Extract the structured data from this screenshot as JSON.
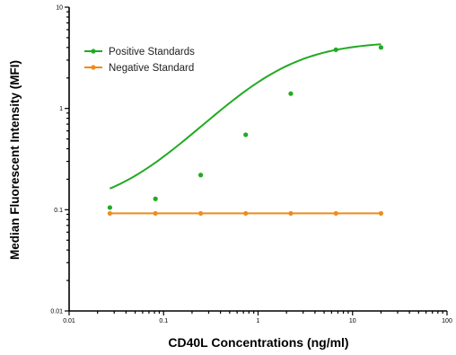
{
  "chart_data": {
    "type": "scatter",
    "xscale": "log",
    "yscale": "log",
    "xlim": [
      0.01,
      100
    ],
    "ylim": [
      0.01,
      10
    ],
    "xlabel": "CD40L Concentrations (ng/ml)",
    "ylabel": "Median Fluorescent Intensity (MFI)",
    "x_tick_labels": [
      "0.01",
      "0.1",
      "1",
      "10",
      "100"
    ],
    "y_tick_labels": [
      "0.01",
      "0.1",
      "1",
      "10"
    ],
    "grid": false,
    "legend_position": "top-left",
    "series": [
      {
        "name": "Positive Standards",
        "color": "#22aa22",
        "marker": "circle",
        "fit": "sigmoidal",
        "points": [
          {
            "x": 0.027,
            "y": 0.105
          },
          {
            "x": 0.082,
            "y": 0.128
          },
          {
            "x": 0.247,
            "y": 0.22
          },
          {
            "x": 0.74,
            "y": 0.55
          },
          {
            "x": 2.22,
            "y": 1.4
          },
          {
            "x": 6.67,
            "y": 3.8
          },
          {
            "x": 20,
            "y": 4.0
          }
        ]
      },
      {
        "name": "Negative Standard",
        "color": "#f08a1c",
        "marker": "circle",
        "fit": "constant",
        "points": [
          {
            "x": 0.027,
            "y": 0.092
          },
          {
            "x": 0.082,
            "y": 0.092
          },
          {
            "x": 0.247,
            "y": 0.092
          },
          {
            "x": 0.74,
            "y": 0.092
          },
          {
            "x": 2.22,
            "y": 0.092
          },
          {
            "x": 6.67,
            "y": 0.092
          },
          {
            "x": 20,
            "y": 0.092
          }
        ]
      }
    ]
  }
}
